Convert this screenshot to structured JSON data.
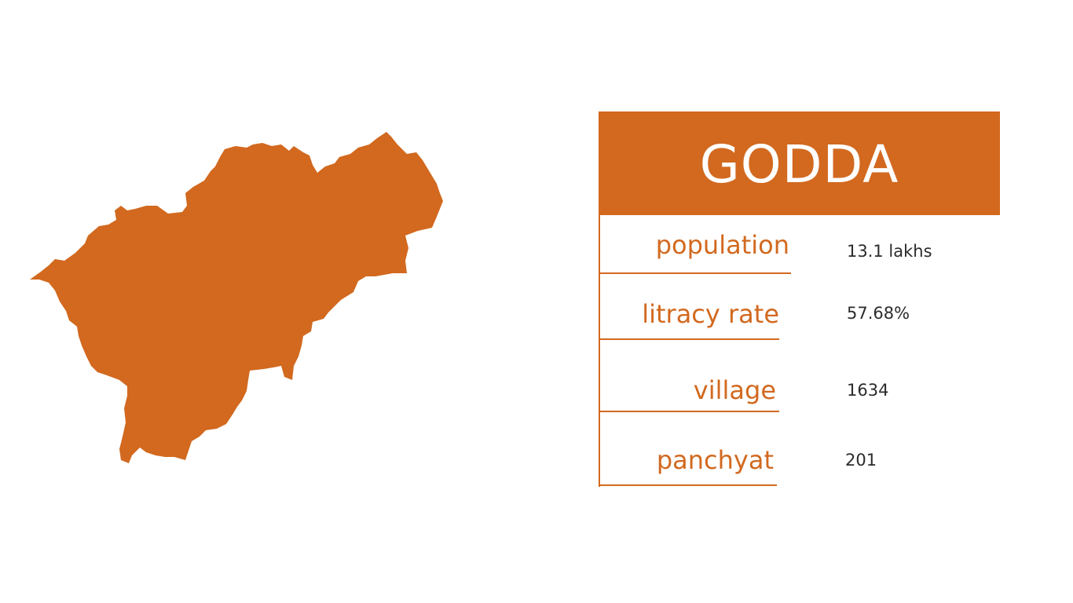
{
  "district": {
    "name": "GODDA",
    "color": "#d2691f"
  },
  "stats": [
    {
      "label": "population",
      "value": "13.1 lakhs"
    },
    {
      "label": "litracy rate",
      "value": "57.68%"
    },
    {
      "label": "village",
      "value": "1634"
    },
    {
      "label": "panchyat",
      "value": "201"
    }
  ]
}
